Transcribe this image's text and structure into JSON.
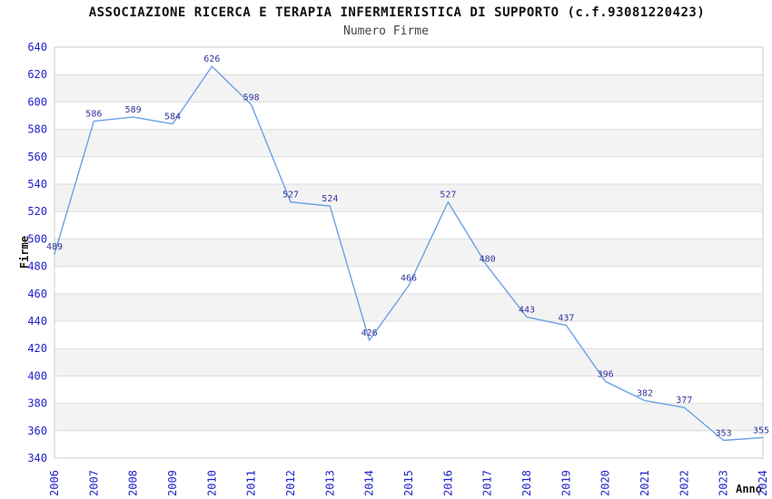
{
  "chart_data": {
    "type": "line",
    "title": "ASSOCIAZIONE RICERCA E TERAPIA INFERMIERISTICA DI SUPPORTO (c.f.93081220423)",
    "subtitle": "Numero Firme",
    "xlabel": "Anno",
    "ylabel": "Firme",
    "categories": [
      "2006",
      "2007",
      "2008",
      "2009",
      "2010",
      "2011",
      "2012",
      "2013",
      "2014",
      "2015",
      "2016",
      "2017",
      "2018",
      "2019",
      "2020",
      "2021",
      "2022",
      "2023",
      "2024"
    ],
    "values": [
      489,
      586,
      589,
      584,
      626,
      598,
      527,
      524,
      426,
      466,
      527,
      480,
      443,
      437,
      396,
      382,
      377,
      353,
      355
    ],
    "ylim": [
      340,
      640
    ],
    "ytick_step": 20,
    "grid": true,
    "alternating_bands": true,
    "legend": "none",
    "colors": {
      "line": "#6aa1e6",
      "tick_label": "#2222cc",
      "data_label": "#333399",
      "band": "#f3f3f3",
      "gridline": "#dddddd",
      "border": "#cccccc",
      "title": "#111111",
      "subtitle": "#444444",
      "axis_title": "#111111",
      "background": "#ffffff"
    }
  }
}
